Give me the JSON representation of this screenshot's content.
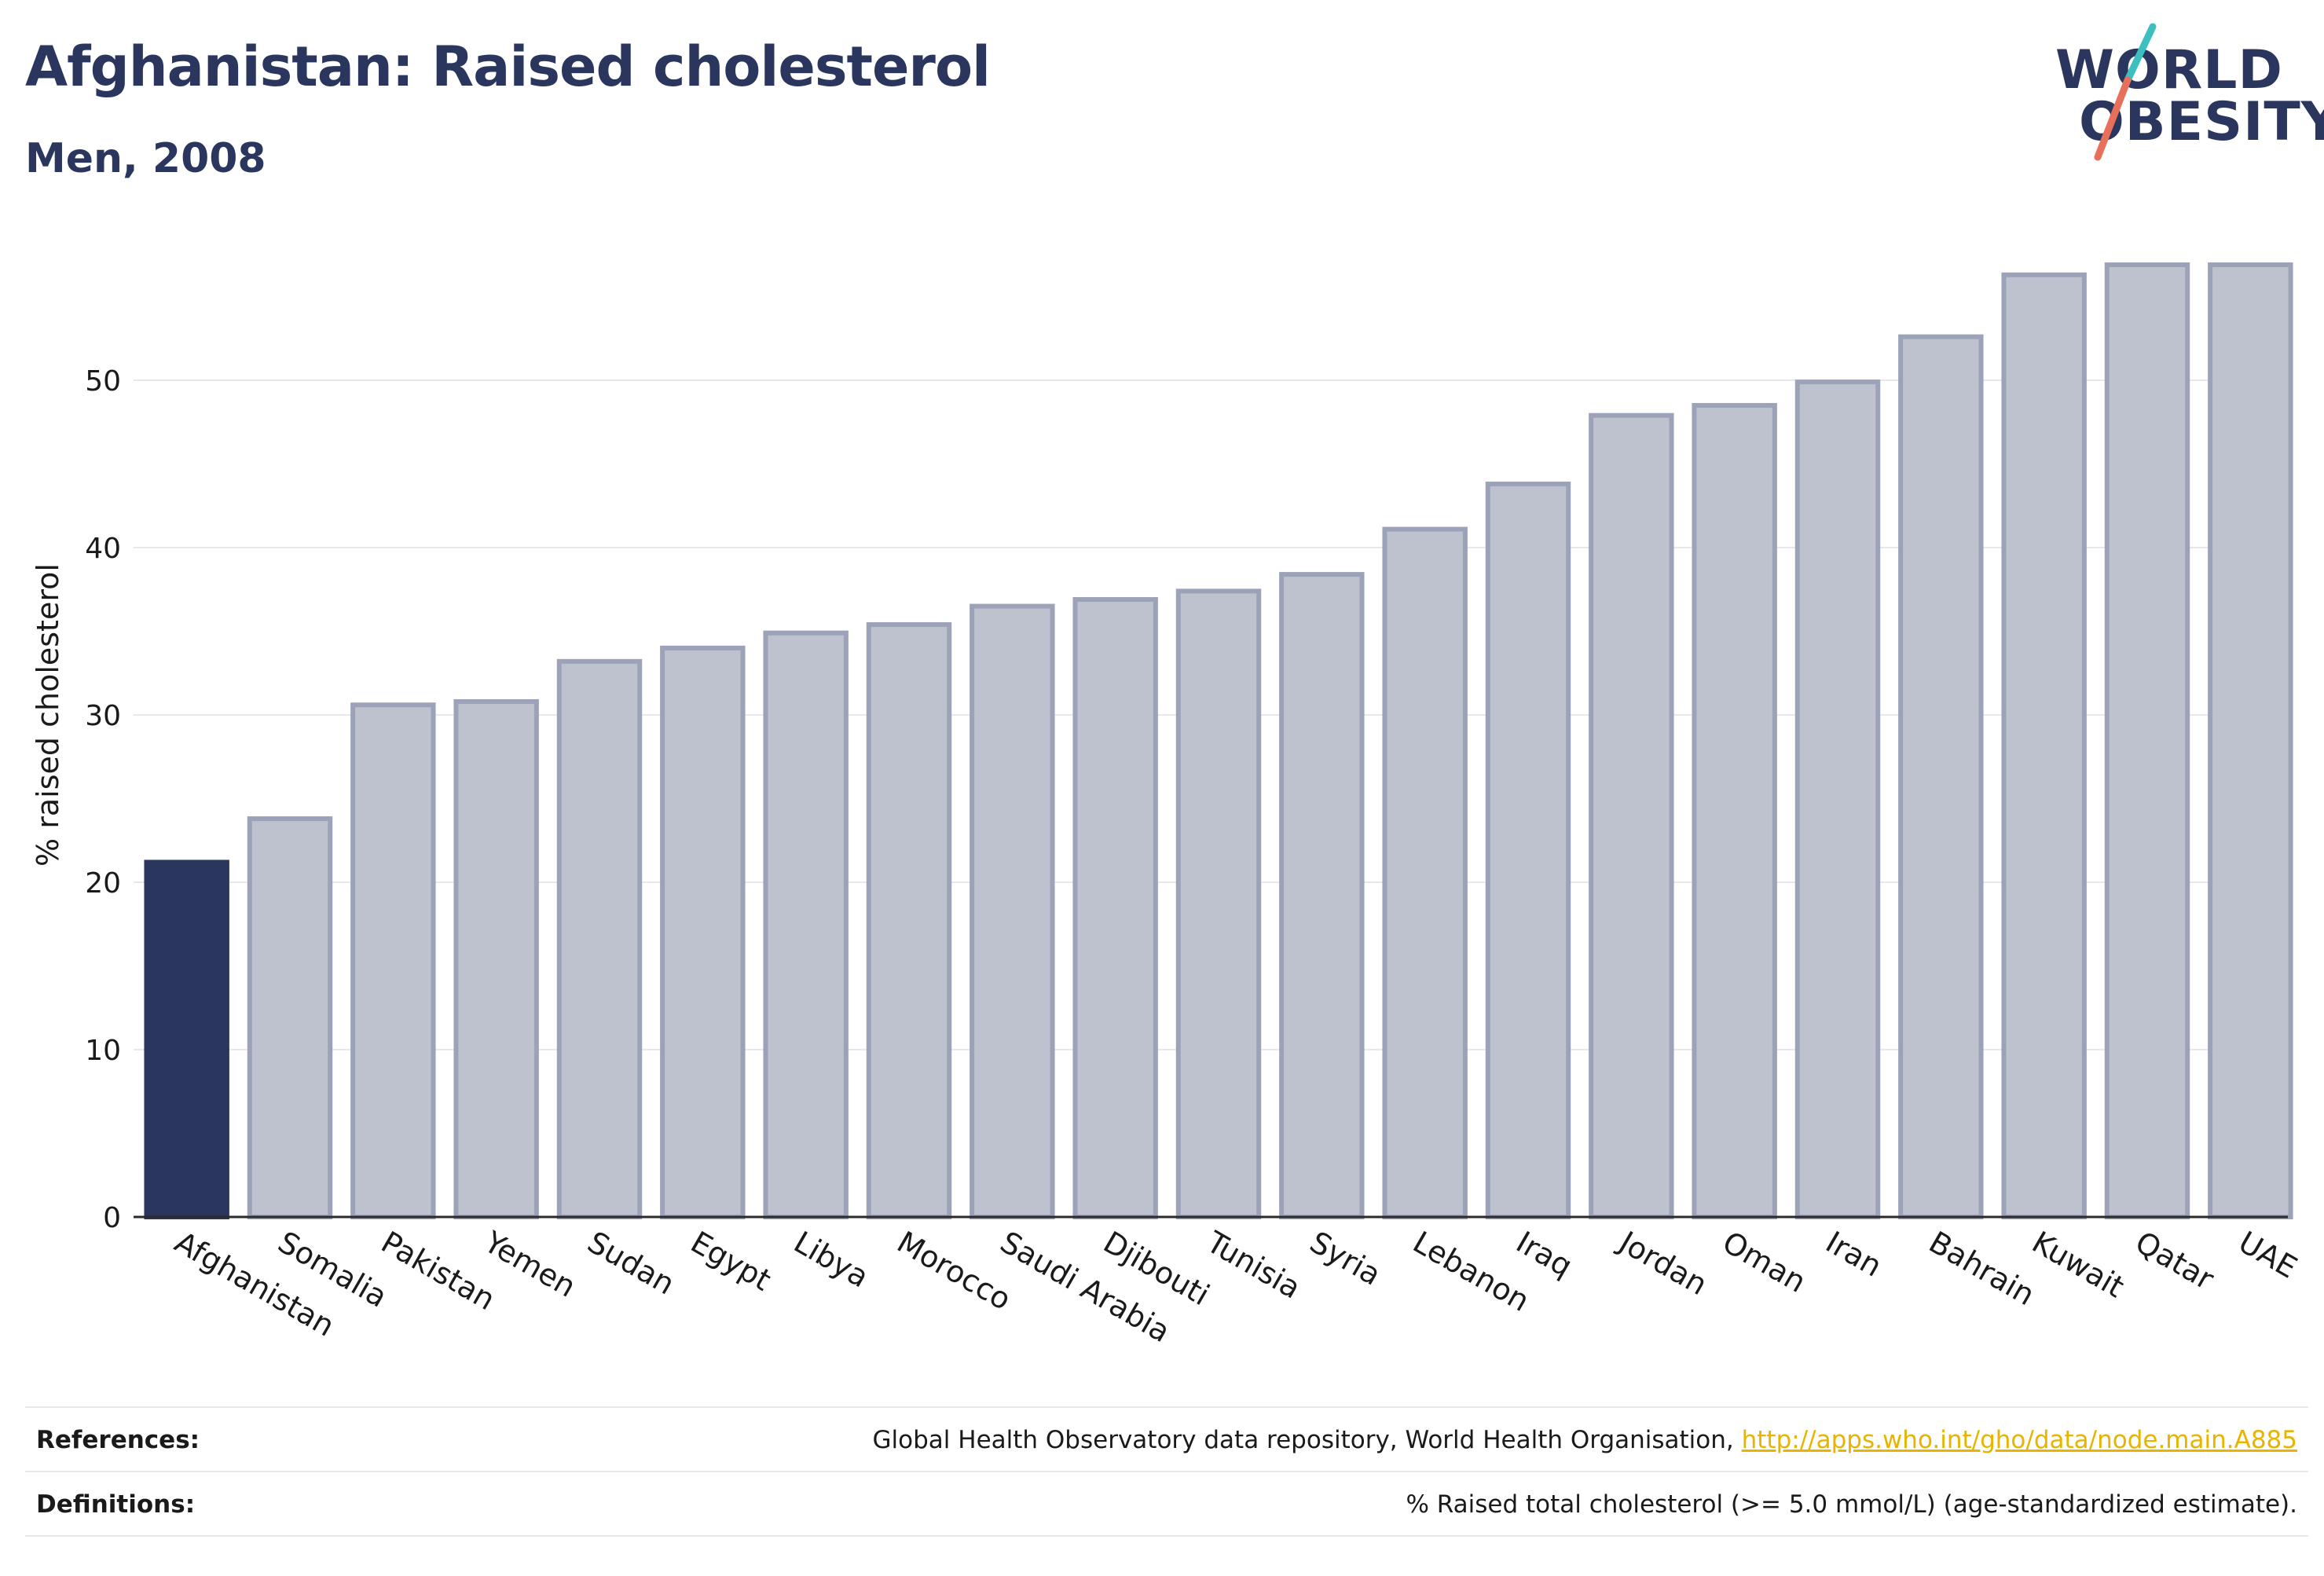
{
  "header": {
    "title": "Afghanistan: Raised cholesterol",
    "subtitle": "Men, 2008"
  },
  "logo": {
    "line1": "WORLD",
    "line2": "OBESITY",
    "accent_teal": "#3bbfbf",
    "accent_coral": "#e8705a"
  },
  "colors": {
    "highlight_bar": "#2b365e",
    "other_bar_fill": "#bec2cf",
    "other_bar_stroke": "#9ca3b8",
    "grid": "#e6e8ee",
    "text": "#2b365e"
  },
  "chart_data": {
    "type": "bar",
    "ylabel": "% raised cholesterol",
    "xlabel": "",
    "ylim": [
      0,
      59
    ],
    "yticks": [
      0,
      10,
      20,
      30,
      40,
      50
    ],
    "grid": true,
    "highlight": "Afghanistan",
    "categories": [
      "Afghanistan",
      "Somalia",
      "Pakistan",
      "Yemen",
      "Sudan",
      "Egypt",
      "Libya",
      "Morocco",
      "Saudi Arabia",
      "Djibouti",
      "Tunisia",
      "Syria",
      "Lebanon",
      "Iraq",
      "Jordan",
      "Oman",
      "Iran",
      "Bahrain",
      "Kuwait",
      "Qatar",
      "UAE"
    ],
    "values": [
      21.2,
      23.8,
      30.6,
      30.8,
      33.2,
      34.0,
      34.9,
      35.4,
      36.5,
      36.9,
      37.4,
      38.4,
      41.1,
      43.8,
      47.9,
      48.5,
      49.9,
      52.6,
      56.3,
      56.9,
      56.9
    ]
  },
  "footer": {
    "references_label": "References:",
    "references_text": "Global Health Observatory data repository, World Health Organisation, ",
    "references_link": "http://apps.who.int/gho/data/node.main.A885",
    "definitions_label": "Definitions:",
    "definitions_text": "% Raised total cholesterol (>= 5.0 mmol/L) (age-standardized estimate)."
  }
}
